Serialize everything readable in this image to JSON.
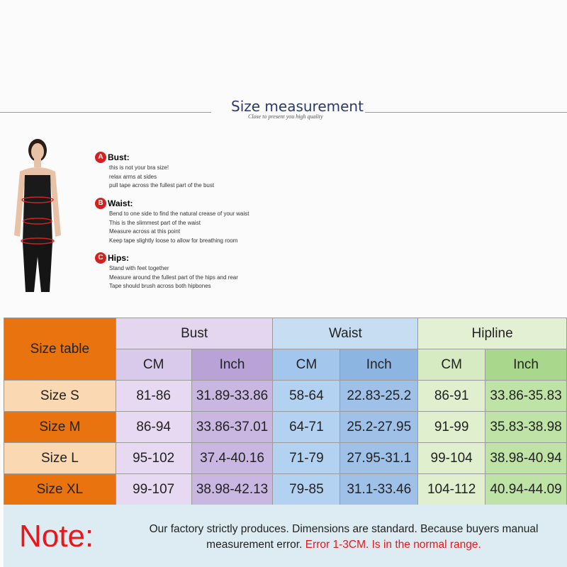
{
  "header": {
    "title": "Size measurement",
    "subtitle": "Close to present you high quality"
  },
  "guide": [
    {
      "letter": "A",
      "title": "Bust:",
      "lines": [
        "this is not your bra size!",
        "relax arms at sides",
        "pull tape across the fullest part of the bust"
      ]
    },
    {
      "letter": "B",
      "title": "Waist:",
      "lines": [
        "Bend  to one side to find the natural crease of your waist",
        "This is the slimmest part of the waist",
        "Measure across at this point",
        "Keep tape slightly loose to allow for breathing room"
      ]
    },
    {
      "letter": "C",
      "title": "Hips:",
      "lines": [
        "Stand with feet together",
        "Measure around the fullest part of the hips and rear",
        "Tape should brush across both hipbones"
      ]
    }
  ],
  "table": {
    "corner": "Size table",
    "groups": [
      "Bust",
      "Waist",
      "Hipline"
    ],
    "units": [
      "CM",
      "Inch",
      "CM",
      "Inch",
      "CM",
      "Inch"
    ],
    "rows": [
      {
        "size": "Size S",
        "values": [
          "81-86",
          "31.89-33.86",
          "58-64",
          "22.83-25.2",
          "86-91",
          "33.86-35.83"
        ]
      },
      {
        "size": "Size M",
        "values": [
          "86-94",
          "33.86-37.01",
          "64-71",
          "25.2-27.95",
          "91-99",
          "35.83-38.98"
        ]
      },
      {
        "size": "Size L",
        "values": [
          "95-102",
          "37.4-40.16",
          "71-79",
          "27.95-31.1",
          "99-104",
          "38.98-40.94"
        ]
      },
      {
        "size": "Size XL",
        "values": [
          "99-107",
          "38.98-42.13",
          "79-85",
          "31.1-33.46",
          "104-112",
          "40.94-44.09"
        ]
      }
    ]
  },
  "note": {
    "label": "Note:",
    "text": "Our factory strictly produces. Dimensions are standard. Because buyers manual measurement error.",
    "highlight": "Error 1-3CM. Is in the normal range."
  },
  "colors": {
    "orange": "#e8730f",
    "peach": "#fad8b2",
    "red": "#e8171a"
  }
}
